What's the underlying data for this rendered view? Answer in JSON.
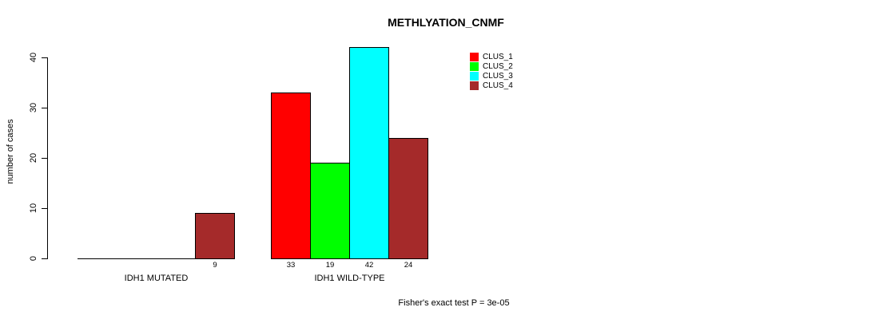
{
  "title": "METHLYATION_CNMF",
  "y_axis": {
    "label": "number of cases",
    "ticks": [
      0,
      10,
      20,
      30,
      40
    ]
  },
  "groups": [
    {
      "label": "IDH1 MUTATED"
    },
    {
      "label": "IDH1 WILD-TYPE"
    }
  ],
  "legend": {
    "items": [
      {
        "label": "CLUS_1",
        "color": "#ff0000"
      },
      {
        "label": "CLUS_2",
        "color": "#00ff00"
      },
      {
        "label": "CLUS_3",
        "color": "#00ffff"
      },
      {
        "label": "CLUS_4",
        "color": "#a52a2a"
      }
    ]
  },
  "footer": "Fisher's exact test P = 3e-05",
  "chart_data": {
    "type": "bar",
    "title": "METHLYATION_CNMF",
    "xlabel": "",
    "ylabel": "number of cases",
    "categories": [
      "IDH1 MUTATED",
      "IDH1 WILD-TYPE"
    ],
    "series": [
      {
        "name": "CLUS_1",
        "color": "#ff0000",
        "values": [
          0,
          33
        ]
      },
      {
        "name": "CLUS_2",
        "color": "#00ff00",
        "values": [
          0,
          19
        ]
      },
      {
        "name": "CLUS_3",
        "color": "#00ffff",
        "values": [
          0,
          42
        ]
      },
      {
        "name": "CLUS_4",
        "color": "#a52a2a",
        "values": [
          9,
          24
        ]
      }
    ],
    "bar_value_labels": [
      [
        "",
        "",
        "",
        "9"
      ],
      [
        "33",
        "19",
        "42",
        "24"
      ]
    ],
    "yticks": [
      0,
      10,
      20,
      30,
      40
    ],
    "ylim": [
      0,
      42
    ],
    "grid": false,
    "legend_position": "top-right",
    "annotation": "Fisher's exact test P = 3e-05"
  }
}
